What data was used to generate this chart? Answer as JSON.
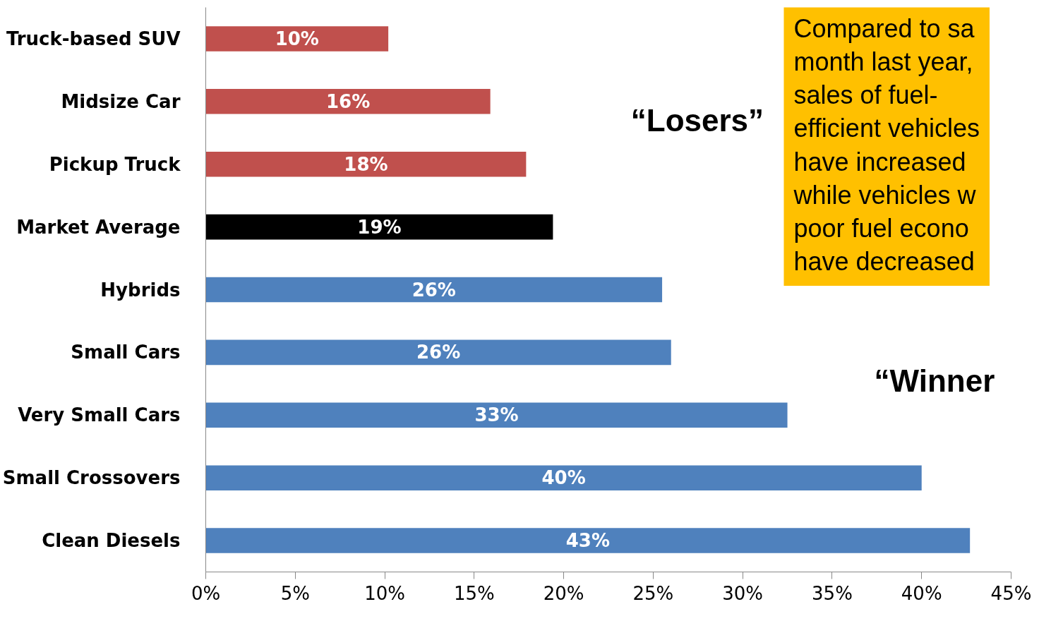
{
  "chart_data": {
    "type": "bar",
    "orientation": "horizontal",
    "categories": [
      "Truck-based SUV",
      "Midsize Car",
      "Pickup Truck",
      "Market Average",
      "Hybrids",
      "Small Cars",
      "Very Small Cars",
      "Small Crossovers",
      "Clean Diesels"
    ],
    "values": [
      10.2,
      15.9,
      17.9,
      19.4,
      25.5,
      26.0,
      32.5,
      40.0,
      42.7
    ],
    "value_labels": [
      "10%",
      "16%",
      "18%",
      "19%",
      "26%",
      "26%",
      "33%",
      "40%",
      "43%"
    ],
    "colors": [
      "#c0504d",
      "#c0504d",
      "#c0504d",
      "#000000",
      "#4f81bd",
      "#4f81bd",
      "#4f81bd",
      "#4f81bd",
      "#4f81bd"
    ],
    "xlim": [
      0,
      45
    ],
    "xticks": [
      {
        "value": 0,
        "label": "0%"
      },
      {
        "value": 5,
        "label": "5%"
      },
      {
        "value": 10,
        "label": "10%"
      },
      {
        "value": 15,
        "label": "15%"
      },
      {
        "value": 20,
        "label": "20%"
      },
      {
        "value": 25,
        "label": "25%"
      },
      {
        "value": 30,
        "label": "30%"
      },
      {
        "value": 35,
        "label": "35%"
      },
      {
        "value": 40,
        "label": "40%"
      },
      {
        "value": 45,
        "label": "45%"
      }
    ],
    "grid": false,
    "annotations": [
      "Compared to sa\nmonth last year,\nsales of fuel-\nefficient vehicles\nhave increased\nwhile vehicles w\npoor fuel econo\nhave decreased",
      "“Losers”",
      "“Winner"
    ]
  }
}
